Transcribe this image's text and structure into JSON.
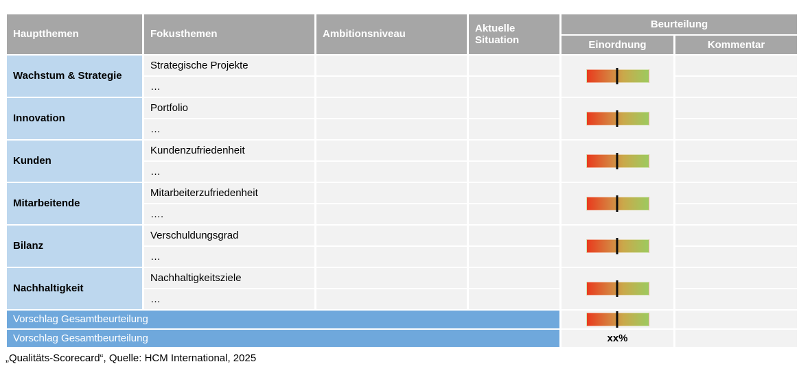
{
  "colors": {
    "header_gray": "#a6a6a6",
    "cell_gray": "#f2f2f2",
    "haupt_blue": "#bdd7ee",
    "summary_blue": "#6fa8dc",
    "gauge_red": "#e93a1d",
    "gauge_orange": "#d6823f",
    "gauge_gold": "#c9aa4b",
    "gauge_green": "#9dca5f"
  },
  "table": {
    "headers": {
      "hauptthemen": "Hauptthemen",
      "fokusthemen": "Fokusthemen",
      "ambitionsniveau": "Ambitionsniveau",
      "aktuelle_situation": "Aktuelle Situation",
      "beurteilung": "Beurteilung",
      "einordnung": "Einordnung",
      "kommentar": "Kommentar"
    },
    "groups": [
      {
        "hauptthema": "Wachstum & Strategie",
        "fokusthemen": [
          "Strategische Projekte",
          "…"
        ]
      },
      {
        "hauptthema": "Innovation",
        "fokusthemen": [
          "Portfolio",
          "…"
        ]
      },
      {
        "hauptthema": "Kunden",
        "fokusthemen": [
          "Kundenzufriedenheit",
          "…"
        ]
      },
      {
        "hauptthema": "Mitarbeitende",
        "fokusthemen": [
          "Mitarbeiterzufriedenheit",
          "…."
        ]
      },
      {
        "hauptthema": "Bilanz",
        "fokusthemen": [
          "Verschuldungsgrad",
          "…"
        ]
      },
      {
        "hauptthema": "Nachhaltigkeit",
        "fokusthemen": [
          "Nachhaltigkeitsziele",
          "…"
        ]
      }
    ],
    "summary_rows": [
      {
        "label": "Vorschlag Gesamtbeurteilung",
        "einordnung_type": "gauge"
      },
      {
        "label": "Vorschlag Gesamtbeurteilung",
        "einordnung_value": "xx%"
      }
    ],
    "gauge": {
      "type": "red-to-green-gradient-scale",
      "marker_position_pct": 49
    }
  },
  "footer": {
    "caption": "„Qualitäts-Scorecard“, Quelle: HCM International, 2025"
  }
}
